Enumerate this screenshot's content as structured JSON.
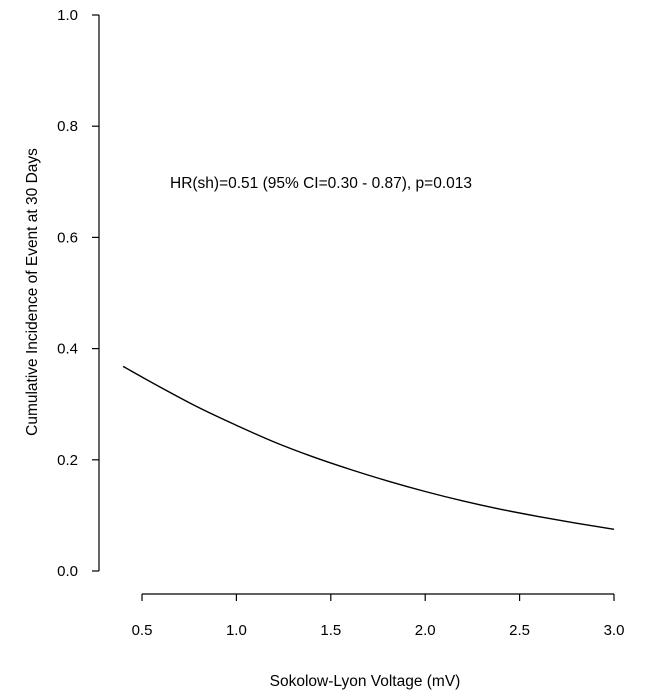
{
  "chart_data": {
    "type": "line",
    "title": "",
    "xlabel": "Sokolow-Lyon Voltage (mV)",
    "ylabel": "Cumulative Incidence of Event at 30 Days",
    "xlim": [
      0.4,
      3.0
    ],
    "ylim": [
      0.0,
      1.0
    ],
    "x_ticks": [
      0.5,
      1.0,
      1.5,
      2.0,
      2.5,
      3.0
    ],
    "x_tick_labels": [
      "0.5",
      "1.0",
      "1.5",
      "2.0",
      "2.5",
      "3.0"
    ],
    "y_ticks": [
      0.0,
      0.2,
      0.4,
      0.6,
      0.8,
      1.0
    ],
    "y_tick_labels": [
      "0.0",
      "0.2",
      "0.4",
      "0.6",
      "0.8",
      "1.0"
    ],
    "grid": false,
    "annotation": "HR(sh)=0.51 (95% CI=0.30 - 0.87), p=0.013",
    "series": [
      {
        "color": "#000000",
        "x": [
          0.4,
          0.6,
          0.8,
          1.0,
          1.2,
          1.4,
          1.6,
          1.8,
          2.0,
          2.2,
          2.4,
          2.6,
          2.8,
          3.0
        ],
        "y": [
          0.368,
          0.33,
          0.294,
          0.262,
          0.232,
          0.206,
          0.183,
          0.162,
          0.143,
          0.126,
          0.111,
          0.098,
          0.086,
          0.075
        ]
      }
    ]
  }
}
